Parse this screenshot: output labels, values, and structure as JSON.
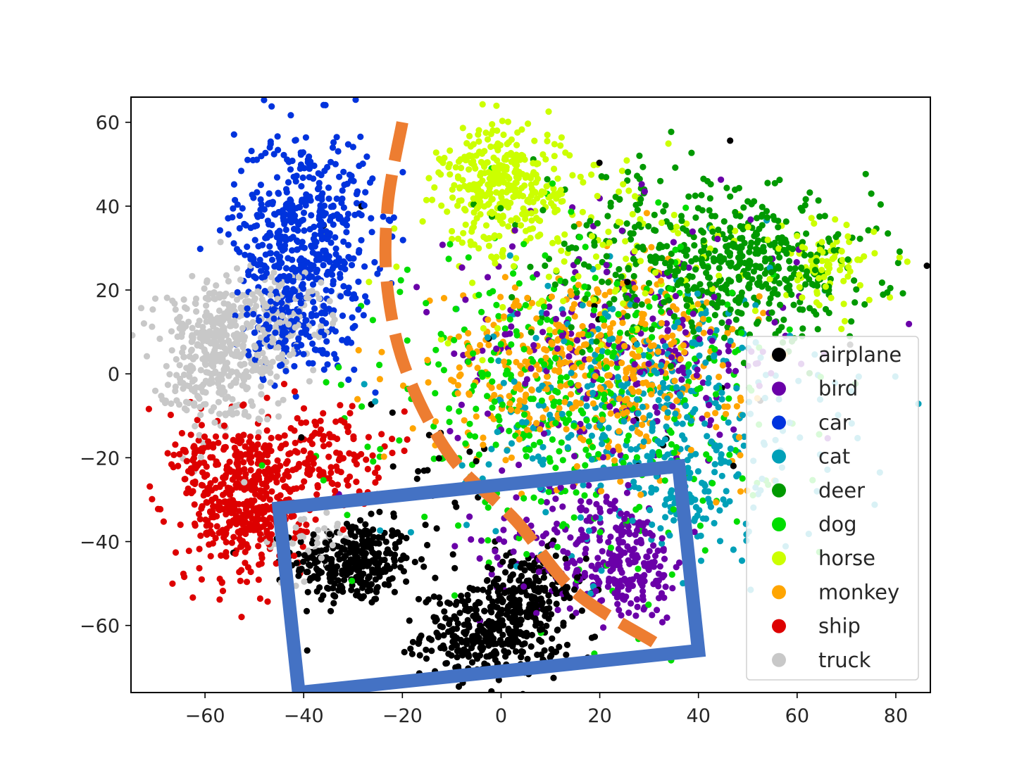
{
  "chart_data": {
    "type": "scatter",
    "title": "",
    "xlabel": "",
    "ylabel": "",
    "xlim": [
      -75,
      87
    ],
    "ylim": [
      -76,
      66
    ],
    "xticks": [
      -60,
      -40,
      -20,
      0,
      20,
      40,
      60,
      80
    ],
    "yticks": [
      60,
      40,
      20,
      0,
      -20,
      -40,
      -60
    ],
    "xtick_labels": [
      "−60",
      "−40",
      "−20",
      "0",
      "20",
      "40",
      "60",
      "80"
    ],
    "ytick_labels": [
      "60",
      "40",
      "20",
      "0",
      "−20",
      "−40",
      "−60"
    ],
    "grid": false,
    "legend_position": "lower-right",
    "series": [
      {
        "name": "airplane",
        "color": "#000000",
        "clusters": [
          {
            "cx": -30,
            "cy": -45,
            "sx": 6,
            "sy": 5,
            "n": 320
          },
          {
            "cx": -2,
            "cy": -62,
            "sx": 7,
            "sy": 5,
            "n": 340
          },
          {
            "cx": 5,
            "cy": -52,
            "sx": 6,
            "sy": 5,
            "n": 160
          },
          {
            "cx": -15,
            "cy": -25,
            "sx": 10,
            "sy": 10,
            "n": 30
          },
          {
            "cx": 20,
            "cy": 10,
            "sx": 30,
            "sy": 25,
            "n": 20
          }
        ]
      },
      {
        "name": "bird",
        "color": "#6a00a8",
        "clusters": [
          {
            "cx": 25,
            "cy": -45,
            "sx": 6,
            "sy": 7,
            "n": 230
          },
          {
            "cx": 12,
            "cy": -40,
            "sx": 8,
            "sy": 8,
            "n": 80
          },
          {
            "cx": 25,
            "cy": 5,
            "sx": 18,
            "sy": 16,
            "n": 260
          }
        ]
      },
      {
        "name": "car",
        "color": "#0033dd",
        "clusters": [
          {
            "cx": -40,
            "cy": 33,
            "sx": 7,
            "sy": 13,
            "n": 500
          },
          {
            "cx": -42,
            "cy": 12,
            "sx": 5,
            "sy": 6,
            "n": 130
          }
        ]
      },
      {
        "name": "cat",
        "color": "#00a0b8",
        "clusters": [
          {
            "cx": 30,
            "cy": -10,
            "sx": 18,
            "sy": 16,
            "n": 420
          },
          {
            "cx": 40,
            "cy": -30,
            "sx": 7,
            "sy": 6,
            "n": 60
          }
        ]
      },
      {
        "name": "deer",
        "color": "#009900",
        "clusters": [
          {
            "cx": 52,
            "cy": 25,
            "sx": 12,
            "sy": 8,
            "n": 360
          },
          {
            "cx": 30,
            "cy": 28,
            "sx": 12,
            "sy": 10,
            "n": 200
          }
        ]
      },
      {
        "name": "dog",
        "color": "#00dd00",
        "clusters": [
          {
            "cx": 15,
            "cy": -5,
            "sx": 19,
            "sy": 18,
            "n": 460
          }
        ]
      },
      {
        "name": "horse",
        "color": "#ccff00",
        "clusters": [
          {
            "cx": 0,
            "cy": 45,
            "sx": 6,
            "sy": 7,
            "n": 320
          },
          {
            "cx": 66,
            "cy": 25,
            "sx": 5,
            "sy": 5,
            "n": 80
          },
          {
            "cx": 20,
            "cy": 30,
            "sx": 18,
            "sy": 12,
            "n": 150
          }
        ]
      },
      {
        "name": "monkey",
        "color": "#ffa500",
        "clusters": [
          {
            "cx": 18,
            "cy": 2,
            "sx": 16,
            "sy": 11,
            "n": 480
          }
        ]
      },
      {
        "name": "ship",
        "color": "#dd0000",
        "clusters": [
          {
            "cx": -52,
            "cy": -30,
            "sx": 6,
            "sy": 10,
            "n": 480
          },
          {
            "cx": -36,
            "cy": -20,
            "sx": 6,
            "sy": 6,
            "n": 140
          },
          {
            "cx": -62,
            "cy": -19,
            "sx": 2,
            "sy": 2,
            "n": 25
          }
        ]
      },
      {
        "name": "truck",
        "color": "#c8c8c8",
        "clusters": [
          {
            "cx": -58,
            "cy": 5,
            "sx": 6,
            "sy": 9,
            "n": 400
          },
          {
            "cx": -45,
            "cy": 12,
            "sx": 6,
            "sy": 6,
            "n": 150
          },
          {
            "cx": -40,
            "cy": -40,
            "sx": 5,
            "sy": 5,
            "n": 40
          }
        ]
      }
    ],
    "annotations": [
      {
        "type": "dashed-curve",
        "color": "#ed7d31",
        "points": [
          [
            -20,
            60
          ],
          [
            -23,
            40
          ],
          [
            -23,
            20
          ],
          [
            -19,
            0
          ],
          [
            -10,
            -20
          ],
          [
            3,
            -35
          ],
          [
            15,
            -52
          ],
          [
            31,
            -64
          ]
        ]
      },
      {
        "type": "rotated-rectangle",
        "color": "#4472c4",
        "corners": [
          [
            -45,
            -32
          ],
          [
            36,
            -22
          ],
          [
            40,
            -66
          ],
          [
            -41,
            -76
          ]
        ]
      }
    ]
  }
}
